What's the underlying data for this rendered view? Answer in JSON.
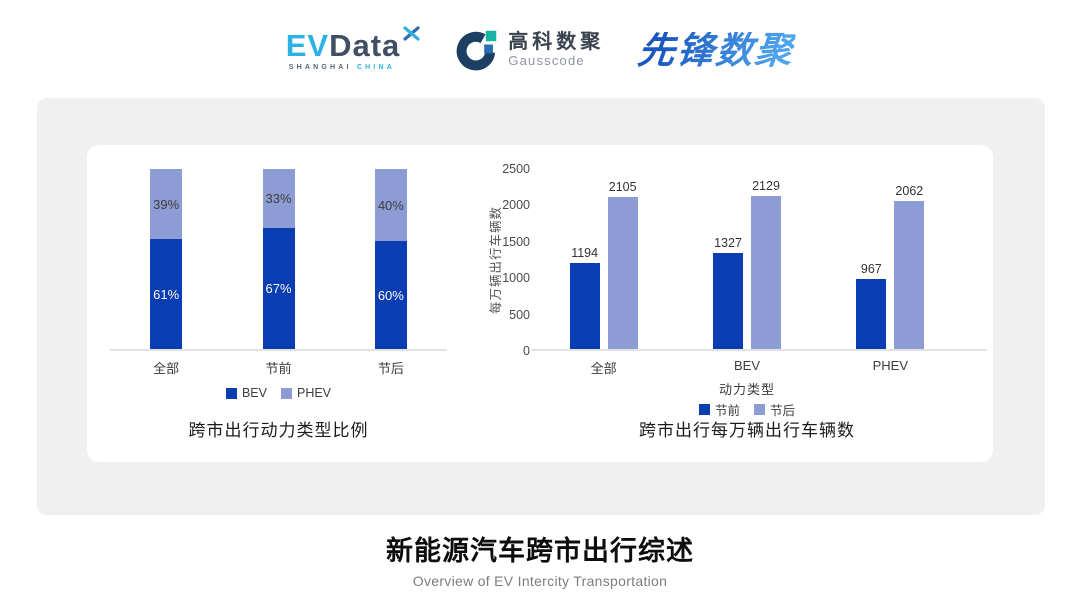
{
  "header": {
    "evdata": {
      "ev": "EV",
      "data": "Data",
      "sub_left": "SHANGHAI",
      "sub_right": "CHINA"
    },
    "gausscode": {
      "cn": "高科数聚",
      "en": "Gausscode"
    },
    "pioneer": {
      "text": "先锋数聚"
    }
  },
  "colors": {
    "accent_cyan": "#2cb1e5",
    "logo_dark": "#404f63",
    "gauss_navy": "#1c3f63",
    "gauss_blue": "#2d6db5",
    "gauss_teal": "#17b3a3",
    "pioneer_blue": "#2e7ed8",
    "bar_dark_blue": "#0a3cb2",
    "bar_light_blue": "#8d9cd4"
  },
  "chart_data": [
    {
      "type": "bar",
      "subtype": "stacked-percent",
      "title": "跨市出行动力类型比例",
      "categories": [
        "全部",
        "节前",
        "节后"
      ],
      "series": [
        {
          "name": "BEV",
          "color": "#0a3cb2",
          "values": [
            61,
            67,
            60
          ],
          "labels": [
            "61%",
            "67%",
            "60%"
          ],
          "label_color": "#ffffff"
        },
        {
          "name": "PHEV",
          "color": "#8d9cd4",
          "values": [
            39,
            33,
            40
          ],
          "labels": [
            "39%",
            "33%",
            "40%"
          ],
          "label_color": "#3d3d3d"
        }
      ],
      "ylim": [
        0,
        100
      ],
      "grid": false,
      "legend_position": "bottom"
    },
    {
      "type": "bar",
      "subtype": "grouped",
      "title": "跨市出行每万辆出行车辆数",
      "categories": [
        "全部",
        "BEV",
        "PHEV"
      ],
      "xlabel": "动力类型",
      "ylabel": "每万辆出行车辆数",
      "ylim": [
        0,
        2500
      ],
      "yticks": [
        0,
        500,
        1000,
        1500,
        2000,
        2500
      ],
      "series": [
        {
          "name": "节前",
          "color": "#0a3cb2",
          "values": [
            1194,
            1327,
            967
          ]
        },
        {
          "name": "节后",
          "color": "#8d9cd4",
          "values": [
            2105,
            2129,
            2062
          ]
        }
      ],
      "grid": false,
      "legend_position": "bottom"
    }
  ],
  "footer": {
    "title": "新能源汽车跨市出行综述",
    "subtitle": "Overview of EV Intercity Transportation"
  }
}
